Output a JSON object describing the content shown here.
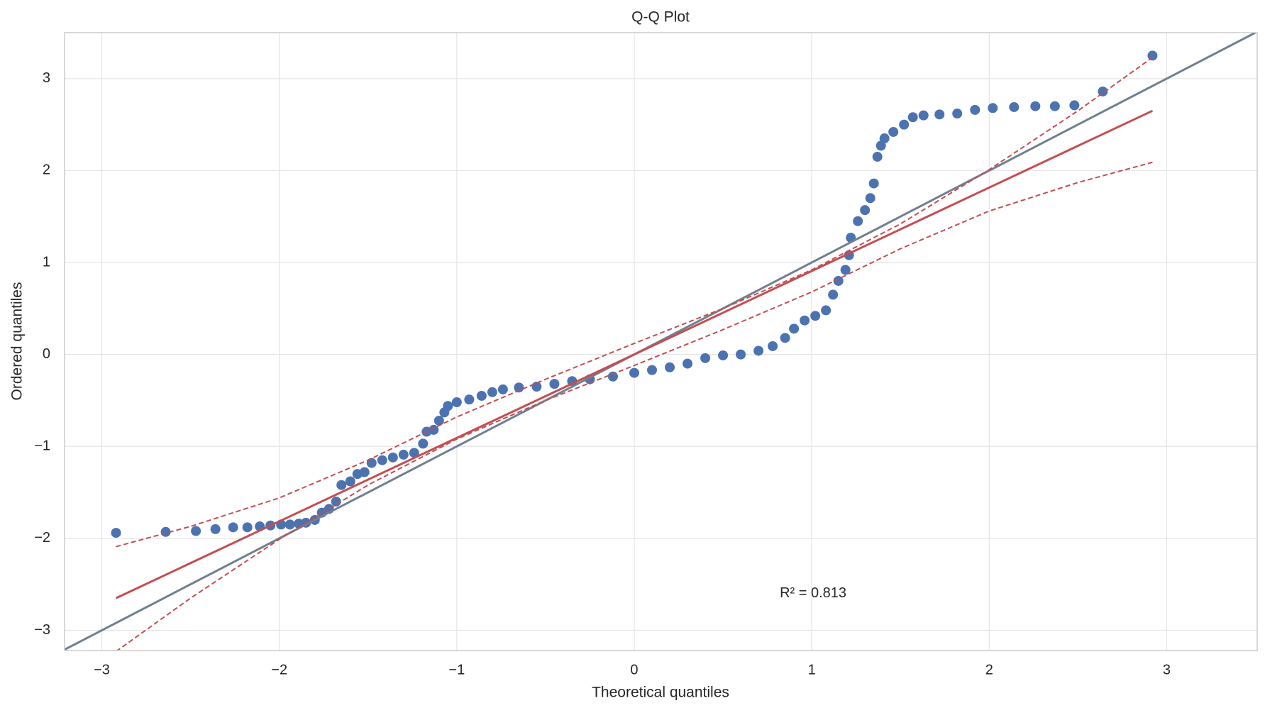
{
  "chart_data": {
    "type": "scatter",
    "title": "Q-Q Plot",
    "xlabel": "Theoretical quantiles",
    "ylabel": "Ordered quantiles",
    "annotation": {
      "text": "R² = 0.813",
      "x": 0.82,
      "y": -2.6
    },
    "grid": true,
    "xlim": [
      -3.21,
      3.51
    ],
    "ylim": [
      -3.22,
      3.5
    ],
    "xticks": [
      {
        "value": -3,
        "label": "−3"
      },
      {
        "value": -2,
        "label": "−2"
      },
      {
        "value": -1,
        "label": "−1"
      },
      0,
      1,
      2,
      3
    ],
    "yticks": [
      {
        "value": -3,
        "label": "−3"
      },
      {
        "value": -2,
        "label": "−2"
      },
      {
        "value": -1,
        "label": "−1"
      },
      0,
      1,
      2,
      3
    ],
    "series": [
      {
        "kind": "scatter",
        "color": "#4c72b0",
        "x": [
          -2.92,
          -2.64,
          -2.47,
          -2.36,
          -2.26,
          -2.18,
          -2.11,
          -2.05,
          -1.99,
          -1.94,
          -1.89,
          -1.85,
          -1.8,
          -1.76,
          -1.72,
          -1.68,
          -1.65,
          -1.6,
          -1.56,
          -1.52,
          -1.48,
          -1.42,
          -1.36,
          -1.3,
          -1.24,
          -1.19,
          -1.17,
          -1.13,
          -1.1,
          -1.07,
          -1.05,
          -1.0,
          -0.93,
          -0.86,
          -0.8,
          -0.74,
          -0.65,
          -0.55,
          -0.45,
          -0.35,
          -0.25,
          -0.12,
          0.0,
          0.1,
          0.2,
          0.3,
          0.4,
          0.5,
          0.6,
          0.7,
          0.78,
          0.85,
          0.9,
          0.96,
          1.02,
          1.08,
          1.12,
          1.15,
          1.19,
          1.21,
          1.22,
          1.26,
          1.3,
          1.33,
          1.35,
          1.37,
          1.39,
          1.41,
          1.46,
          1.52,
          1.57,
          1.63,
          1.72,
          1.82,
          1.92,
          2.02,
          2.14,
          2.26,
          2.37,
          2.48,
          2.64,
          2.92
        ],
        "values": [
          -1.94,
          -1.93,
          -1.92,
          -1.9,
          -1.88,
          -1.88,
          -1.87,
          -1.86,
          -1.85,
          -1.85,
          -1.84,
          -1.83,
          -1.8,
          -1.72,
          -1.68,
          -1.6,
          -1.42,
          -1.38,
          -1.3,
          -1.28,
          -1.18,
          -1.15,
          -1.12,
          -1.09,
          -1.07,
          -0.97,
          -0.84,
          -0.82,
          -0.72,
          -0.63,
          -0.56,
          -0.52,
          -0.49,
          -0.45,
          -0.41,
          -0.38,
          -0.36,
          -0.35,
          -0.32,
          -0.29,
          -0.27,
          -0.24,
          -0.2,
          -0.17,
          -0.14,
          -0.1,
          -0.04,
          -0.01,
          0.0,
          0.04,
          0.09,
          0.18,
          0.28,
          0.37,
          0.42,
          0.48,
          0.65,
          0.8,
          0.92,
          1.08,
          1.27,
          1.45,
          1.57,
          1.7,
          1.86,
          2.15,
          2.27,
          2.35,
          2.42,
          2.5,
          2.58,
          2.6,
          2.61,
          2.62,
          2.66,
          2.68,
          2.69,
          2.7,
          2.7,
          2.71,
          2.86,
          3.25
        ]
      },
      {
        "kind": "line",
        "color": "#708090",
        "dash": false,
        "x": [
          -3.22,
          3.5
        ],
        "values": [
          -3.22,
          3.5
        ]
      },
      {
        "kind": "line",
        "color": "#c44e52",
        "dash": false,
        "x": [
          -2.92,
          2.92
        ],
        "values": [
          -2.65,
          2.65
        ]
      },
      {
        "kind": "line",
        "color": "#c44e52",
        "dash": true,
        "x": [
          -2.92,
          -2.5,
          -2,
          -1.5,
          -1,
          -0.5,
          0,
          0.5,
          1,
          1.5,
          2,
          2.5,
          2.92
        ],
        "values": [
          -2.09,
          -1.87,
          -1.56,
          -1.15,
          -0.68,
          -0.27,
          0.12,
          0.5,
          0.92,
          1.42,
          2.01,
          2.65,
          3.23
        ]
      },
      {
        "kind": "line",
        "color": "#c44e52",
        "dash": true,
        "x": [
          -2.92,
          -2.5,
          -2,
          -1.5,
          -1,
          -0.5,
          0,
          0.5,
          1,
          1.5,
          2,
          2.5,
          2.92
        ],
        "values": [
          -3.23,
          -2.65,
          -2.01,
          -1.42,
          -0.92,
          -0.5,
          -0.12,
          0.27,
          0.68,
          1.15,
          1.56,
          1.87,
          2.09
        ]
      }
    ]
  }
}
